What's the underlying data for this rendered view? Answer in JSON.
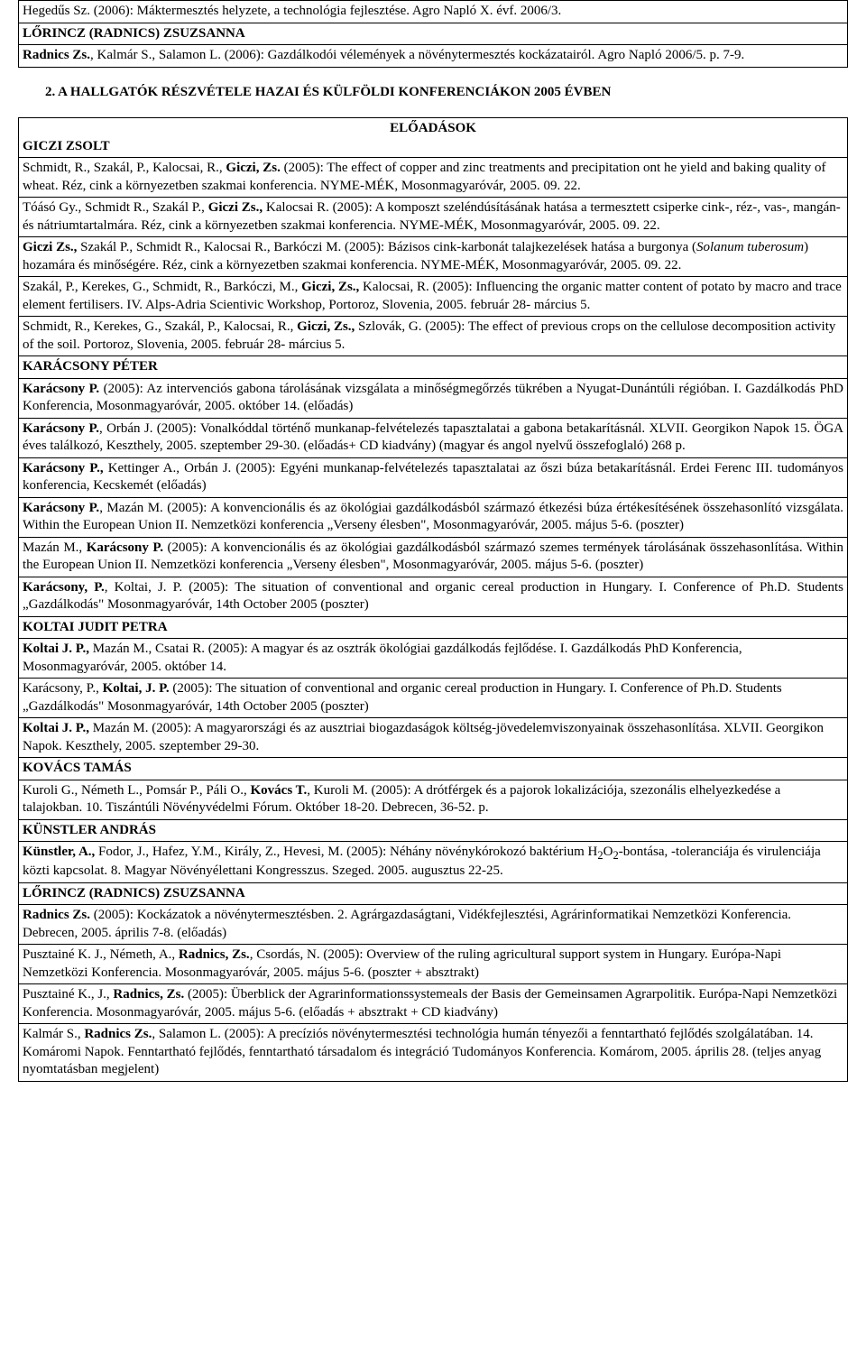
{
  "top_rows": [
    "Hegedűs Sz. (2006): Máktermesztés helyzete, a technológia fejlesztése. Agro Napló X. évf. 2006/3.",
    {
      "bold_prefix": "LŐRINCZ (RADNICS) ZSUZSANNA",
      "rest": ""
    },
    {
      "bold_prefix": "Radnics Zs.",
      "rest": ", Kalmár S., Salamon L. (2006): Gazdálkodói vélemények a növénytermesztés kockázatairól. Agro Napló 2006/5. p. 7-9."
    }
  ],
  "section_heading": "2.   A HALLGATÓK RÉSZVÉTELE HAZAI ÉS KÜLFÖLDI KONFERENCIÁKON 2005 ÉVBEN",
  "eloadasok_label": "ELŐADÁSOK",
  "rows": [
    {
      "bold_prefix": "GICZI ZSOLT",
      "rest": ""
    },
    {
      "html": "Schmidt, R., Szakál, P., Kalocsai, R., <b>Giczi, Zs.</b> (2005): The effect of copper and zinc treatments and precipitation ont he yield and baking quality of wheat. Réz, cink a környezetben szakmai konferencia. NYME-MÉK, Mosonmagyaróvár, 2005. 09. 22."
    },
    {
      "html": "Tóásó Gy., Schmidt R., Szakál P., <b>Giczi Zs., </b>Kalocsai R. (2005): A komposzt szeléndúsításának hatása a termesztett csiperke cink-, réz-, vas-, mangán- és nátriumtartalmára. Réz, cink a környezetben szakmai konferencia. NYME-MÉK, Mosonmagyaróvár, 2005. 09. 22."
    },
    {
      "html": "<b>Giczi Zs.,</b> Szakál P., Schmidt R., Kalocsai R., Barkóczi M. (2005): Bázisos cink-karbonát talajkezelések hatása a burgonya (<i>Solanum tuberosum</i>) hozamára és minőségére. Réz, cink a környezetben szakmai konferencia. NYME-MÉK, Mosonmagyaróvár, 2005. 09. 22."
    },
    {
      "html": "Szakál, P., Kerekes, G., Schmidt, R., Barkóczi, M., <b>Giczi, Zs.,</b> Kalocsai, R. (2005): Influencing the organic matter content of potato by macro and trace element fertilisers. IV. Alps-Adria Scientivic Workshop, Portoroz, Slovenia, 2005. február 28- március 5."
    },
    {
      "html": "Schmidt, R., Kerekes, G., Szakál, P., Kalocsai, R., <b>Giczi, Zs.,</b> Szlovák, G. (2005): The effect of previous crops on the cellulose decomposition activity of the soil. Portoroz, Slovenia, 2005. február 28- március 5."
    },
    {
      "bold_prefix": "KARÁCSONY PÉTER",
      "rest": ""
    },
    {
      "html": "<b>Karácsony P.</b> (2005): Az intervenciós gabona tárolásának vizsgálata a minőségmegőrzés tükrében a Nyugat-Dunántúli régióban. I. Gazdálkodás PhD Konferencia, Mosonmagyaróvár, 2005. október 14. (előadás)",
      "justify": true
    },
    {
      "html": "<b>Karácsony P.</b>, Orbán J. (2005): Vonalkóddal történő munkanap-felvételezés tapasztalatai a gabona betakarításnál. XLVII. Georgikon Napok 15. ÖGA éves találkozó, Keszthely, 2005. szeptember 29-30. (előadás+ CD kiadvány) (magyar és angol nyelvű összefoglaló) 268 p.",
      "justify": true
    },
    {
      "html": "<b>Karácsony P.,</b> Kettinger A., Orbán J. (2005): Egyéni munkanap-felvételezés tapasztalatai az őszi búza betakarításnál. Erdei Ferenc III. tudományos konferencia, Kecskemét (előadás)",
      "justify": true
    },
    {
      "html": "<b>Karácsony P.</b>, Mazán M. (2005): A konvencionális és az ökológiai gazdálkodásból származó étkezési búza értékesítésének összehasonlító vizsgálata. Within the European Union II. Nemzetközi konferencia „Verseny élesben\", Mosonmagyaróvár, 2005. május 5-6. (poszter)",
      "justify": true
    },
    {
      "html": "Mazán M., <b>Karácsony P.</b> (2005): A konvencionális és az ökológiai gazdálkodásból származó szemes termények tárolásának összehasonlítása. Within the European Union II. Nemzetközi konferencia „Verseny élesben\", Mosonmagyaróvár, 2005. május 5-6. (poszter)",
      "justify": true
    },
    {
      "html": "<b>Karácsony, P.</b>, Koltai, J. P. (2005): The situation of conventional and organic cereal production in Hungary. I. Conference of Ph.D. Students „Gazdálkodás\" Mosonmagyaróvár, 14th October 2005 (poszter)",
      "justify": true
    },
    {
      "bold_prefix": "KOLTAI JUDIT PETRA",
      "rest": ""
    },
    {
      "html": "<b>Koltai J. P.,</b> Mazán M., Csatai R. (2005): A magyar és az osztrák ökológiai gazdálkodás fejlődése. I. Gazdálkodás PhD Konferencia, Mosonmagyaróvár, 2005. október 14."
    },
    {
      "html": "Karácsony, P., <b>Koltai, J. P.</b> (2005): The situation of conventional and organic cereal production in Hungary. I. Conference of Ph.D. Students „Gazdálkodás\" Mosonmagyaróvár, 14th October 2005 (poszter)"
    },
    {
      "html": "<b>Koltai J. P.,</b> Mazán M. (2005): A magyarországi és az ausztriai biogazdaságok költség-jövedelemviszonyainak összehasonlítása. XLVII. Georgikon Napok. Keszthely, 2005. szeptember 29-30."
    },
    {
      "bold_prefix": "KOVÁCS TAMÁS",
      "rest": ""
    },
    {
      "html": "Kuroli G., Németh L., Pomsár P., Páli O., <b>Kovács T.</b>, Kuroli M. (2005): A drótférgek és a pajorok lokalizációja, szezonális elhelyezkedése a talajokban. 10. Tiszántúli Növényvédelmi Fórum. Október 18-20. Debrecen, 36-52. p."
    },
    {
      "bold_prefix": "KÜNSTLER ANDRÁS",
      "rest": ""
    },
    {
      "html": "<b>Künstler, A., </b>Fodor, J., Hafez, Y.M., Király, Z., Hevesi, M. (2005): Néhány növénykórokozó baktérium H<sub>2</sub>O<sub>2</sub>-bontása, -toleranciája és virulenciája közti kapcsolat. 8. Magyar Növényélettani Kongresszus. Szeged. 2005. augusztus 22-25."
    },
    {
      "bold_prefix": "LŐRINCZ (RADNICS) ZSUZSANNA",
      "rest": ""
    },
    {
      "html": "<b>Radnics Zs.</b> (2005): Kockázatok a növénytermesztésben. 2. Agrárgazdaságtani, Vidékfejlesztési, Agrárinformatikai Nemzetközi Konferencia. Debrecen, 2005. április 7-8. (előadás)"
    },
    {
      "html": "Pusztainé K. J., Németh, A., <b>Radnics, Zs.</b>, Csordás, N. (2005): Overview of the ruling agricultural support system in Hungary. Európa-Napi Nemzetközi Konferencia. Mosonmagyaróvár, 2005. május 5-6. (poszter + absztrakt)"
    },
    {
      "html": "Pusztainé K., J., <b>Radnics, Zs.</b> (2005): Überblick der Agrarinformationssystemeals der Basis der Gemeinsamen Agrarpolitik. Európa-Napi Nemzetközi Konferencia. Mosonmagyaróvár, 2005. május 5-6. (előadás + absztrakt + CD kiadvány)"
    },
    {
      "html": "Kalmár S., <b>Radnics Zs.</b>, Salamon L. (2005): A precíziós növénytermesztési technológia humán tényezői a fenntartható fejlődés szolgálatában. 14. Komáromi Napok. Fenntartható fejlődés, fenntartható társadalom és integráció Tudományos Konferencia. Komárom, 2005. április 28. (teljes anyag nyomtatásban megjelent)"
    }
  ]
}
